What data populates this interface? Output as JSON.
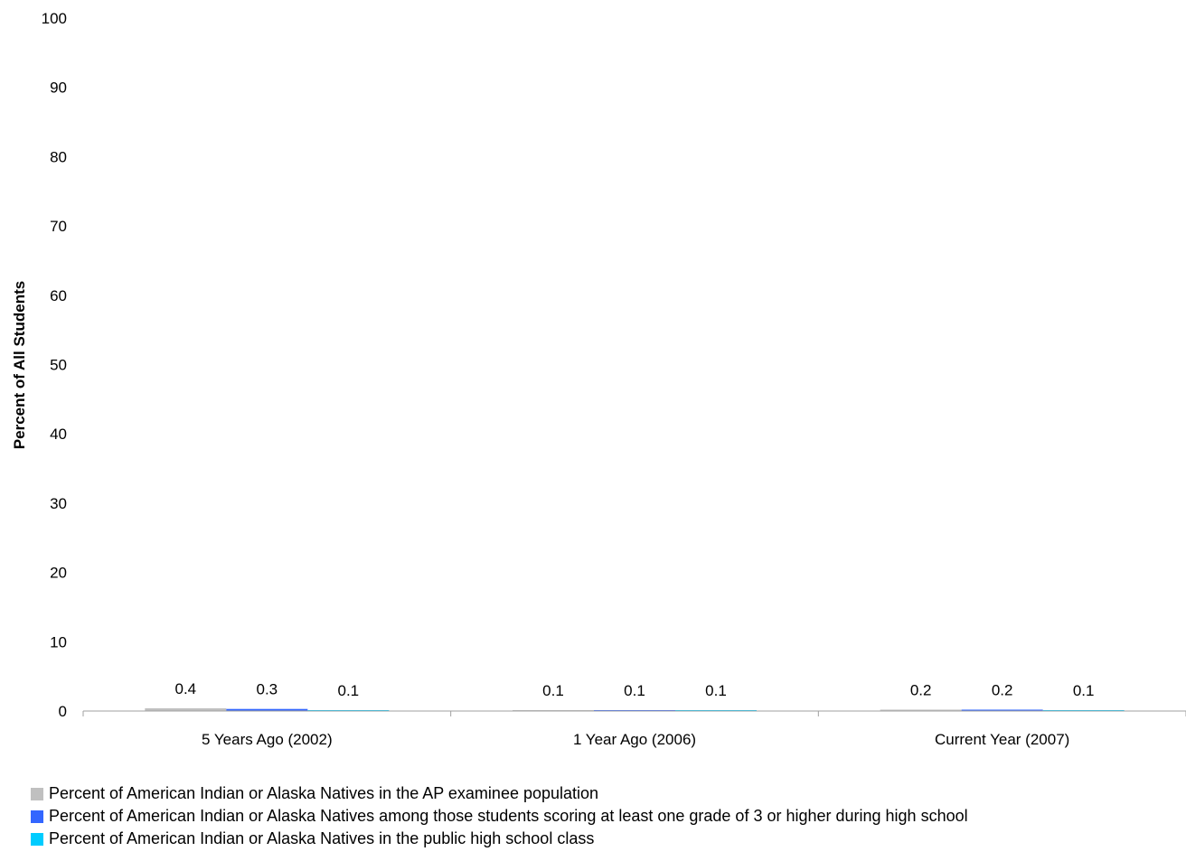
{
  "colors": {
    "series_1": "#C0C0C0",
    "series_2": "#3366FF",
    "series_3": "#00CCFF",
    "axis": "#A0A0A0"
  },
  "chart_data": {
    "type": "bar",
    "title": "",
    "xlabel": "",
    "ylabel": "Percent of All Students",
    "ylim": [
      0,
      100
    ],
    "yticks": [
      "0",
      "10",
      "20",
      "30",
      "40",
      "50",
      "60",
      "70",
      "80",
      "90",
      "100"
    ],
    "grid": false,
    "legend_position": "bottom",
    "categories": [
      "5 Years Ago (2002)",
      "1 Year Ago (2006)",
      "Current Year (2007)"
    ],
    "series": [
      {
        "name": "Percent of American Indian or Alaska Natives in the AP examinee population",
        "values": [
          0.4,
          0.1,
          0.2
        ],
        "labels": [
          "0.4",
          "0.1",
          "0.2"
        ]
      },
      {
        "name": "Percent of American Indian or Alaska Natives among those students scoring at least one grade of 3 or higher during high school",
        "values": [
          0.3,
          0.1,
          0.2
        ],
        "labels": [
          "0.3",
          "0.1",
          "0.2"
        ]
      },
      {
        "name": "Percent of American Indian or Alaska Natives in the public high school class",
        "values": [
          0.1,
          0.1,
          0.1
        ],
        "labels": [
          "0.1",
          "0.1",
          "0.1"
        ]
      }
    ]
  }
}
